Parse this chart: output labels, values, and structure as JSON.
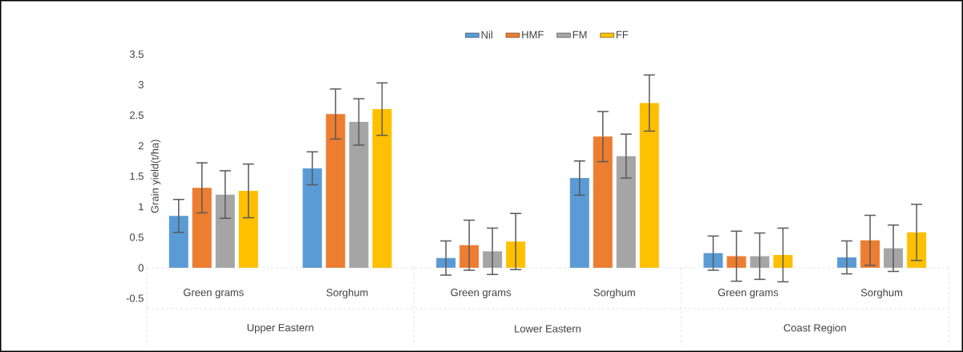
{
  "chart_data": {
    "type": "bar",
    "ylabel": "Grain yield(t/ha)",
    "categories": [
      "Green grams",
      "Sorghum",
      "Green grams",
      "Sorghum",
      "Green grams",
      "Sorghum"
    ],
    "annotations": [
      "Upper Eastern",
      "Lower Eastern",
      "Coast Region"
    ],
    "series": [
      {
        "name": "Nil",
        "color": "#5b9bd5",
        "values": [
          0.85,
          1.63,
          0.16,
          1.47,
          0.24,
          0.17
        ],
        "errors": [
          0.27,
          0.27,
          0.28,
          0.28,
          0.28,
          0.27
        ]
      },
      {
        "name": "HMF",
        "color": "#ed7d31",
        "values": [
          1.31,
          2.52,
          0.37,
          2.15,
          0.19,
          0.45
        ],
        "errors": [
          0.41,
          0.41,
          0.41,
          0.41,
          0.41,
          0.41
        ]
      },
      {
        "name": "FM",
        "color": "#a5a5a5",
        "values": [
          1.2,
          2.39,
          0.27,
          1.83,
          0.19,
          0.32
        ],
        "errors": [
          0.39,
          0.38,
          0.38,
          0.36,
          0.38,
          0.38
        ]
      },
      {
        "name": "FF",
        "color": "#ffc000",
        "values": [
          1.26,
          2.6,
          0.43,
          2.7,
          0.21,
          0.58
        ],
        "errors": [
          0.44,
          0.43,
          0.46,
          0.46,
          0.44,
          0.46
        ]
      }
    ],
    "ylim": [
      -0.5,
      3.5
    ],
    "yticks": [
      -0.5,
      0,
      0.5,
      1,
      1.5,
      2,
      2.5,
      3,
      3.5
    ],
    "legend": "top"
  }
}
